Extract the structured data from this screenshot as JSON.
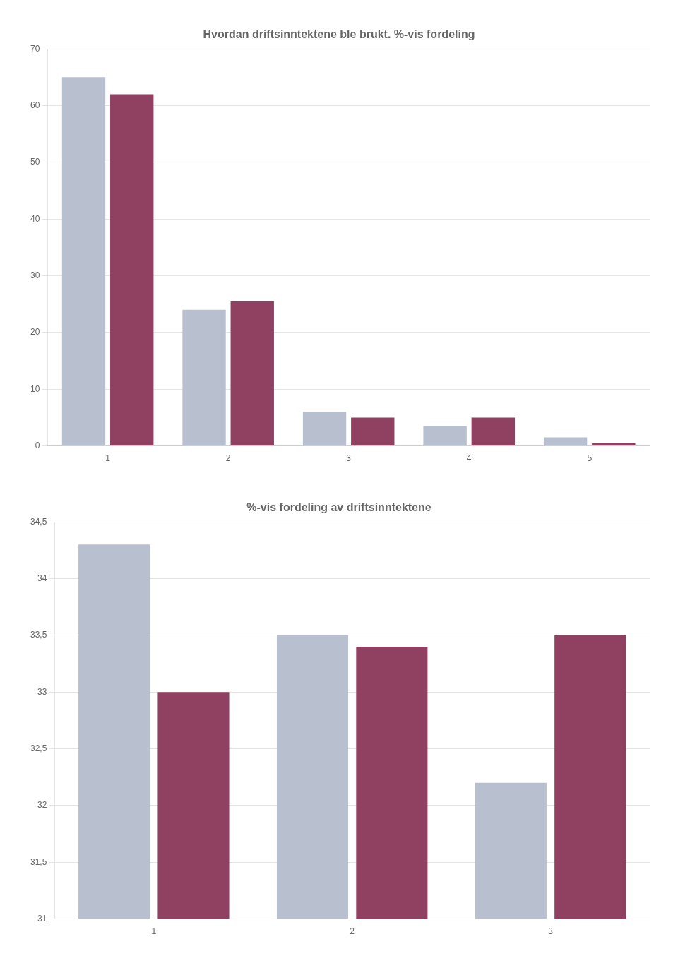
{
  "chart_data": [
    {
      "type": "bar",
      "title": "Hvordan driftsinntektene ble brukt. %-vis fordeling",
      "categories": [
        1,
        2,
        3,
        4,
        5
      ],
      "series": [
        {
          "color": "#b8c0d0",
          "values": [
            65,
            24,
            6,
            3.5,
            1.5
          ]
        },
        {
          "color": "#904060",
          "values": [
            62,
            25.5,
            5,
            5,
            0.5
          ]
        }
      ],
      "ylim": [
        0,
        70
      ],
      "yticks": [
        0,
        10,
        20,
        30,
        40,
        50,
        60,
        70
      ],
      "grid": true
    },
    {
      "type": "bar",
      "title": "%-vis fordeling av driftsinntektene",
      "categories": [
        1,
        2,
        3
      ],
      "series": [
        {
          "color": "#b8c0d0",
          "values": [
            34.3,
            33.5,
            32.2
          ]
        },
        {
          "color": "#904060",
          "values": [
            33.0,
            33.4,
            33.5
          ]
        }
      ],
      "ylim": [
        31,
        34.5
      ],
      "yticks": [
        31,
        {
          "value": 31.5,
          "label": "31,5"
        },
        32,
        {
          "value": 32.5,
          "label": "32,5"
        },
        33,
        {
          "value": 33.5,
          "label": "33,5"
        },
        34,
        {
          "value": 34.5,
          "label": "34,5"
        }
      ],
      "grid": true
    }
  ]
}
